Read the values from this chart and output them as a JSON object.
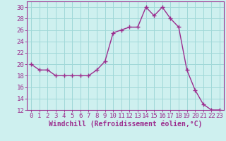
{
  "x": [
    0,
    1,
    2,
    3,
    4,
    5,
    6,
    7,
    8,
    9,
    10,
    11,
    12,
    13,
    14,
    15,
    16,
    17,
    18,
    19,
    20,
    21,
    22,
    23
  ],
  "y": [
    20,
    19,
    19,
    18,
    18,
    18,
    18,
    18,
    19,
    20.5,
    25.5,
    26,
    26.5,
    26.5,
    30,
    28.5,
    30,
    28,
    26.5,
    19,
    15.5,
    13,
    12,
    12
  ],
  "line_color": "#9b2d8e",
  "marker_color": "#9b2d8e",
  "background_color": "#cef0ef",
  "grid_color": "#a0d8d8",
  "xlabel": "Windchill (Refroidissement éolien,°C)",
  "ylim": [
    12,
    31
  ],
  "xlim": [
    -0.5,
    23.5
  ],
  "yticks": [
    12,
    14,
    16,
    18,
    20,
    22,
    24,
    26,
    28,
    30
  ],
  "xticks": [
    0,
    1,
    2,
    3,
    4,
    5,
    6,
    7,
    8,
    9,
    10,
    11,
    12,
    13,
    14,
    15,
    16,
    17,
    18,
    19,
    20,
    21,
    22,
    23
  ],
  "xlabel_fontsize": 7.0,
  "tick_fontsize": 6.5,
  "marker_size": 2.5,
  "line_width": 1.0
}
